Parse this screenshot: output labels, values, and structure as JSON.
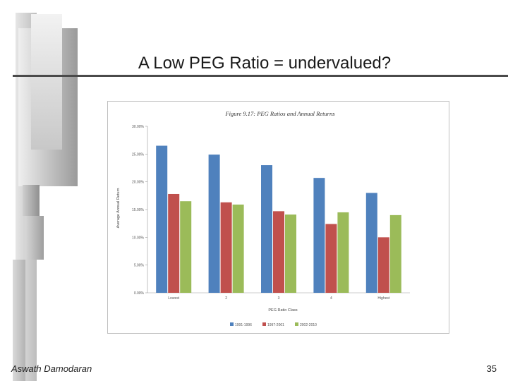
{
  "slide": {
    "title": "A Low PEG Ratio = undervalued?",
    "author": "Aswath Damodaran",
    "page_number": "35"
  },
  "chart_data": {
    "type": "bar",
    "title": "Figure 9.17: PEG Ratios and Annual Returns",
    "xlabel": "PEG Ratio Class",
    "ylabel": "Average Annual Return",
    "categories": [
      "Lowest",
      "2",
      "3",
      "4",
      "Highest"
    ],
    "ylim": [
      0,
      30
    ],
    "yticks": [
      "0.00%",
      "5.00%",
      "10.00%",
      "15.00%",
      "20.00%",
      "25.00%",
      "30.00%"
    ],
    "legend_position": "bottom",
    "grid": false,
    "series": [
      {
        "name": "1991-1996",
        "color": "#4f81bd",
        "values": [
          26.5,
          24.9,
          23.0,
          20.7,
          18.0
        ]
      },
      {
        "name": "1997-2001",
        "color": "#c0504d",
        "values": [
          17.8,
          16.3,
          14.7,
          12.4,
          10.0
        ]
      },
      {
        "name": "2002-2010",
        "color": "#9bbb59",
        "values": [
          16.5,
          15.9,
          14.1,
          14.5,
          14.0
        ]
      }
    ]
  }
}
